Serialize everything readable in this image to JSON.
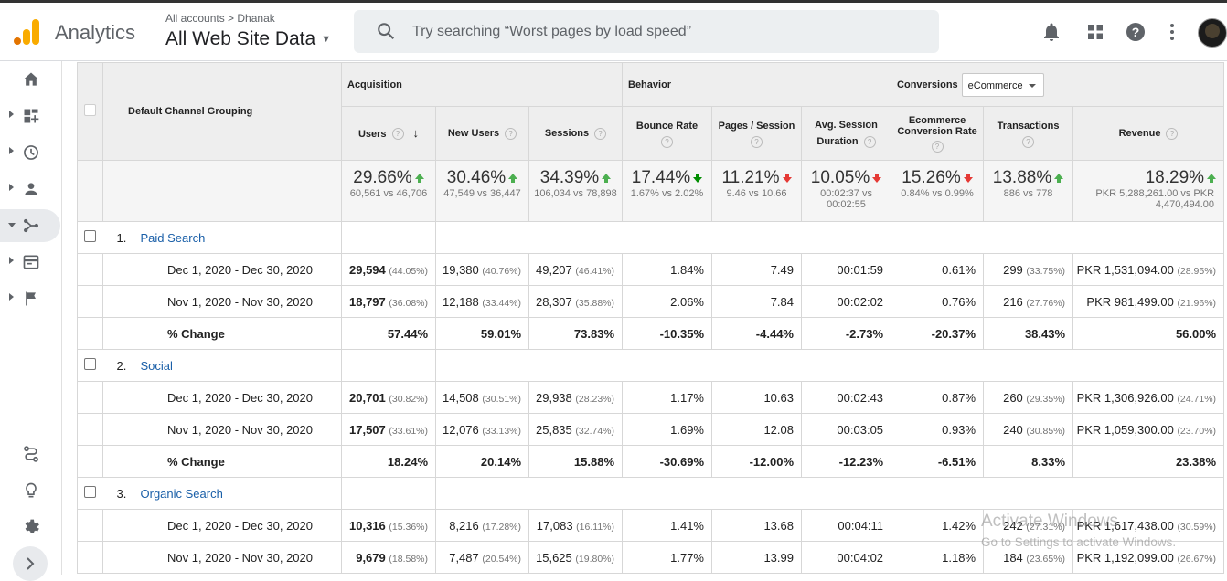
{
  "app": {
    "name": "Analytics"
  },
  "header": {
    "breadcrumb": "All accounts > Dhanak",
    "property": "All Web Site Data",
    "search_placeholder": "Try searching “Worst pages by load speed”"
  },
  "table": {
    "dimension_header": "Default Channel Grouping",
    "groups": {
      "acquisition": "Acquisition",
      "behavior": "Behavior",
      "conversions": "Conversions",
      "conversion_select": "eCommerce"
    },
    "columns": [
      "Users",
      "New Users",
      "Sessions",
      "Bounce Rate",
      "Pages / Session",
      "Avg. Session Duration",
      "Ecommerce Conversion Rate",
      "Transactions",
      "Revenue"
    ],
    "col_users": "Users",
    "col_new_users": "New Users",
    "col_sessions": "Sessions",
    "col_bounce": "Bounce Rate",
    "col_pages": "Pages / Session",
    "col_duration_1": "Avg. Session",
    "col_duration_2": "Duration",
    "col_ecr_1": "Ecommerce",
    "col_ecr_2": "Conversion Rate",
    "col_transactions": "Transactions",
    "col_revenue": "Revenue",
    "summary": [
      {
        "pct": "29.66%",
        "dir": "up",
        "cmp": "60,561 vs 46,706"
      },
      {
        "pct": "30.46%",
        "dir": "up",
        "cmp": "47,549 vs 36,447"
      },
      {
        "pct": "34.39%",
        "dir": "up",
        "cmp": "106,034 vs 78,898"
      },
      {
        "pct": "17.44%",
        "dir": "down-good",
        "cmp": "1.67% vs 2.02%"
      },
      {
        "pct": "11.21%",
        "dir": "down",
        "cmp": "9.46 vs 10.66"
      },
      {
        "pct": "10.05%",
        "dir": "down",
        "cmp": "00:02:37 vs 00:02:55"
      },
      {
        "pct": "15.26%",
        "dir": "down",
        "cmp": "0.84% vs 0.99%"
      },
      {
        "pct": "13.88%",
        "dir": "up",
        "cmp": "886 vs 778"
      },
      {
        "pct": "18.29%",
        "dir": "up",
        "cmp": "PKR 5,288,261.00 vs PKR 4,470,494.00"
      }
    ],
    "rows": [
      {
        "index": "1.",
        "name": "Paid Search",
        "current_label": "Dec 1, 2020 - Dec 30, 2020",
        "current": [
          "29,594",
          "(44.05%)",
          "19,380",
          "(40.76%)",
          "49,207",
          "(46.41%)",
          "1.84%",
          "7.49",
          "00:01:59",
          "0.61%",
          "299",
          "(33.75%)",
          "PKR 1,531,094.00",
          "(28.95%)"
        ],
        "previous_label": "Nov 1, 2020 - Nov 30, 2020",
        "previous": [
          "18,797",
          "(36.08%)",
          "12,188",
          "(33.44%)",
          "28,307",
          "(35.88%)",
          "2.06%",
          "7.84",
          "00:02:02",
          "0.76%",
          "216",
          "(27.76%)",
          "PKR 981,499.00",
          "(21.96%)"
        ],
        "change_label": "% Change",
        "change": [
          "57.44%",
          "59.01%",
          "73.83%",
          "-10.35%",
          "-4.44%",
          "-2.73%",
          "-20.37%",
          "38.43%",
          "56.00%"
        ]
      },
      {
        "index": "2.",
        "name": "Social",
        "current_label": "Dec 1, 2020 - Dec 30, 2020",
        "current": [
          "20,701",
          "(30.82%)",
          "14,508",
          "(30.51%)",
          "29,938",
          "(28.23%)",
          "1.17%",
          "10.63",
          "00:02:43",
          "0.87%",
          "260",
          "(29.35%)",
          "PKR 1,306,926.00",
          "(24.71%)"
        ],
        "previous_label": "Nov 1, 2020 - Nov 30, 2020",
        "previous": [
          "17,507",
          "(33.61%)",
          "12,076",
          "(33.13%)",
          "25,835",
          "(32.74%)",
          "1.69%",
          "12.08",
          "00:03:05",
          "0.93%",
          "240",
          "(30.85%)",
          "PKR 1,059,300.00",
          "(23.70%)"
        ],
        "change_label": "% Change",
        "change": [
          "18.24%",
          "20.14%",
          "15.88%",
          "-30.69%",
          "-12.00%",
          "-12.23%",
          "-6.51%",
          "8.33%",
          "23.38%"
        ]
      },
      {
        "index": "3.",
        "name": "Organic Search",
        "current_label": "Dec 1, 2020 - Dec 30, 2020",
        "current": [
          "10,316",
          "(15.36%)",
          "8,216",
          "(17.28%)",
          "17,083",
          "(16.11%)",
          "1.41%",
          "13.68",
          "00:04:11",
          "1.42%",
          "242",
          "(27.31%)",
          "PKR 1,617,438.00",
          "(30.59%)"
        ],
        "previous_label": "Nov 1, 2020 - Nov 30, 2020",
        "previous": [
          "9,679",
          "(18.58%)",
          "7,487",
          "(20.54%)",
          "15,625",
          "(19.80%)",
          "1.77%",
          "13.99",
          "00:04:02",
          "1.18%",
          "184",
          "(23.65%)",
          "PKR 1,192,099.00",
          "(26.67%)"
        ]
      }
    ]
  },
  "watermark": {
    "line1": "Activate Windows",
    "line2": "Go to Settings to activate Windows."
  },
  "colors": {
    "accent_link": "#1a5fa8",
    "up": "#4caf50",
    "down": "#e53935",
    "logo_orange": "#f9ab00",
    "logo_dark": "#e37400"
  },
  "icons": [
    "analytics-logo-icon",
    "search-icon",
    "bell-icon",
    "apps-grid-icon",
    "help-icon",
    "more-vert-icon",
    "home-icon",
    "customization-icon",
    "realtime-clock-icon",
    "audience-person-icon",
    "acquisition-icon",
    "behavior-icon",
    "conversions-flag-icon",
    "attribution-icon",
    "discover-bulb-icon",
    "admin-gear-icon",
    "chevron-right-icon"
  ]
}
